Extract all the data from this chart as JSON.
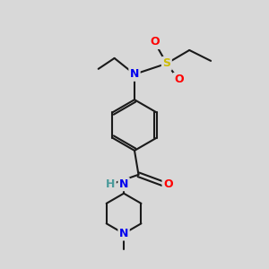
{
  "bg_color": "#d8d8d8",
  "bond_color": "#1a1a1a",
  "bond_width": 1.5,
  "atom_colors": {
    "N": "#0000ee",
    "O": "#ff0000",
    "S": "#ccbb00",
    "C": "#1a1a1a",
    "H": "#4a9a9a"
  },
  "font_size_atom": 9,
  "font_size_small": 8.5
}
